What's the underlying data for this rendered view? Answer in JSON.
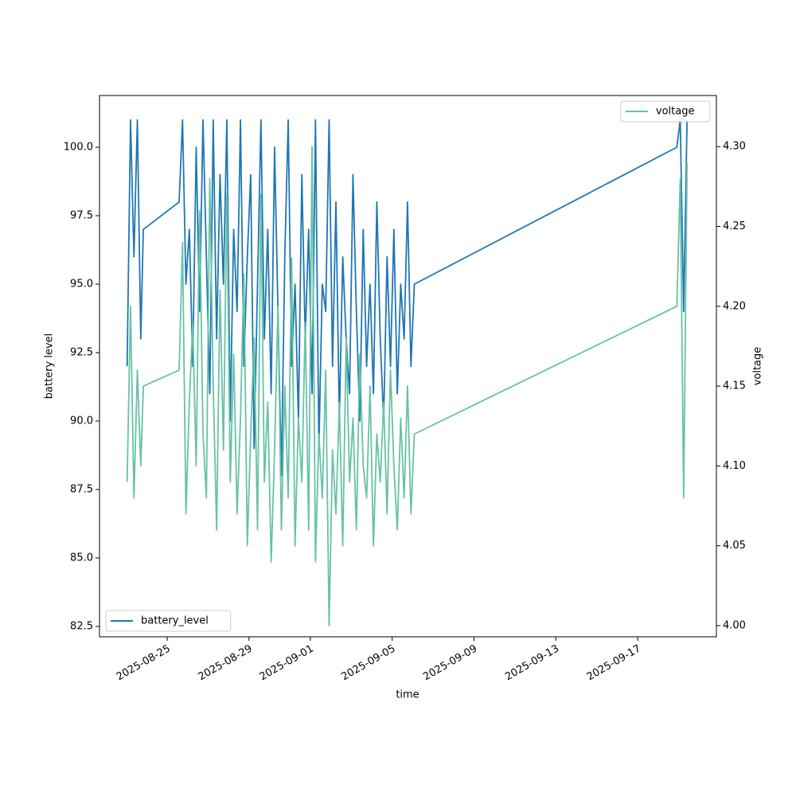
{
  "chart_data": {
    "type": "line",
    "xlabel": "time",
    "ylabel": "battery level",
    "y2label": "voltage",
    "x": [
      "2025-08-23T01:00",
      "2025-08-23T05:00",
      "2025-08-23T09:00",
      "2025-08-23T13:00",
      "2025-08-23T17:00",
      "2025-08-23T20:00",
      "2025-08-25T14:00",
      "2025-08-25T18:00",
      "2025-08-25T22:00",
      "2025-08-26T02:00",
      "2025-08-26T06:00",
      "2025-08-26T10:00",
      "2025-08-26T14:00",
      "2025-08-26T18:00",
      "2025-08-26T22:00",
      "2025-08-27T02:00",
      "2025-08-27T06:00",
      "2025-08-27T10:00",
      "2025-08-27T14:00",
      "2025-08-27T18:00",
      "2025-08-27T22:00",
      "2025-08-28T02:00",
      "2025-08-28T06:00",
      "2025-08-28T10:00",
      "2025-08-28T14:00",
      "2025-08-28T18:00",
      "2025-08-28T22:00",
      "2025-08-29T02:00",
      "2025-08-29T06:00",
      "2025-08-29T10:00",
      "2025-08-29T14:00",
      "2025-08-29T18:00",
      "2025-08-29T22:00",
      "2025-08-30T02:00",
      "2025-08-30T06:00",
      "2025-08-30T10:00",
      "2025-08-30T14:00",
      "2025-08-30T18:00",
      "2025-08-30T22:00",
      "2025-08-31T02:00",
      "2025-08-31T06:00",
      "2025-08-31T10:00",
      "2025-08-31T14:00",
      "2025-08-31T18:00",
      "2025-08-31T22:00",
      "2025-09-01T02:00",
      "2025-09-01T06:00",
      "2025-09-01T10:00",
      "2025-09-01T14:00",
      "2025-09-01T18:00",
      "2025-09-01T22:00",
      "2025-09-02T02:00",
      "2025-09-02T06:00",
      "2025-09-02T10:00",
      "2025-09-02T14:00",
      "2025-09-02T18:00",
      "2025-09-02T22:00",
      "2025-09-03T02:00",
      "2025-09-03T06:00",
      "2025-09-03T10:00",
      "2025-09-03T14:00",
      "2025-09-03T18:00",
      "2025-09-03T22:00",
      "2025-09-04T02:00",
      "2025-09-04T06:00",
      "2025-09-04T10:00",
      "2025-09-04T14:00",
      "2025-09-04T18:00",
      "2025-09-04T22:00",
      "2025-09-05T02:00",
      "2025-09-05T06:00",
      "2025-09-05T10:00",
      "2025-09-05T14:00",
      "2025-09-05T18:00",
      "2025-09-05T22:00",
      "2025-09-06T02:00",
      "2025-09-18T22:00",
      "2025-09-19T02:00",
      "2025-09-19T06:00",
      "2025-09-19T10:00"
    ],
    "series": [
      {
        "name": "battery_level",
        "color": "#1f77b4",
        "axis": "y",
        "legend": "lower left",
        "values": [
          92,
          101,
          96,
          101,
          93,
          97,
          98,
          101,
          95,
          97,
          92,
          100,
          94,
          101,
          96,
          91,
          101,
          93,
          99,
          95,
          101,
          90,
          97,
          94,
          101,
          92,
          96,
          99,
          89,
          95,
          101,
          93,
          97,
          91,
          100,
          94,
          88,
          96,
          101,
          92,
          95,
          90,
          99,
          93,
          97,
          91,
          101,
          89,
          95,
          94,
          101,
          92,
          98,
          90,
          96,
          93,
          91,
          99,
          94,
          90,
          97,
          92,
          95,
          91,
          98,
          93,
          90,
          96,
          92,
          97,
          91,
          95,
          93,
          98,
          92,
          95,
          100,
          101,
          94,
          101
        ]
      },
      {
        "name": "voltage",
        "color": "#66c2a5",
        "axis": "y2",
        "legend": "upper right",
        "values": [
          4.09,
          4.2,
          4.08,
          4.16,
          4.1,
          4.15,
          4.16,
          4.24,
          4.07,
          4.14,
          4.19,
          4.1,
          4.26,
          4.12,
          4.08,
          4.28,
          4.15,
          4.06,
          4.21,
          4.11,
          4.27,
          4.09,
          4.17,
          4.07,
          4.13,
          4.22,
          4.05,
          4.12,
          4.18,
          4.06,
          4.27,
          4.09,
          4.14,
          4.04,
          4.11,
          4.2,
          4.06,
          4.15,
          4.08,
          4.23,
          4.05,
          4.13,
          4.09,
          4.19,
          4.06,
          4.3,
          4.04,
          4.12,
          4.08,
          4.16,
          4,
          4.11,
          4.07,
          4.14,
          4.05,
          4.18,
          4.09,
          4.13,
          4.06,
          4.17,
          4.1,
          4.08,
          4.15,
          4.05,
          4.12,
          4.09,
          4.14,
          4.07,
          4.16,
          4.1,
          4.06,
          4.13,
          4.08,
          4.15,
          4.07,
          4.12,
          4.2,
          4.28,
          4.08,
          4.29
        ]
      }
    ],
    "xlim": [
      "2025-08-21T16:35",
      "2025-09-20T20:25"
    ],
    "xticks": [
      "2025-08-25",
      "2025-08-29",
      "2025-09-01",
      "2025-09-05",
      "2025-09-09",
      "2025-09-13",
      "2025-09-17"
    ],
    "ylim": [
      82.12,
      101.89
    ],
    "yticks": [
      82.5,
      {
        "value": 85,
        "label": "85.0"
      },
      87.5,
      {
        "value": 90,
        "label": "90.0"
      },
      92.5,
      {
        "value": 95,
        "label": "95.0"
      },
      97.5,
      {
        "value": 100,
        "label": "100.0"
      }
    ],
    "y2lim": [
      3.993,
      4.332
    ],
    "y2ticks": [
      {
        "value": 4,
        "label": "4.00"
      },
      4.05,
      {
        "value": 4.1,
        "label": "4.10"
      },
      4.15,
      {
        "value": 4.2,
        "label": "4.20"
      },
      4.25,
      {
        "value": 4.3,
        "label": "4.30"
      }
    ]
  }
}
